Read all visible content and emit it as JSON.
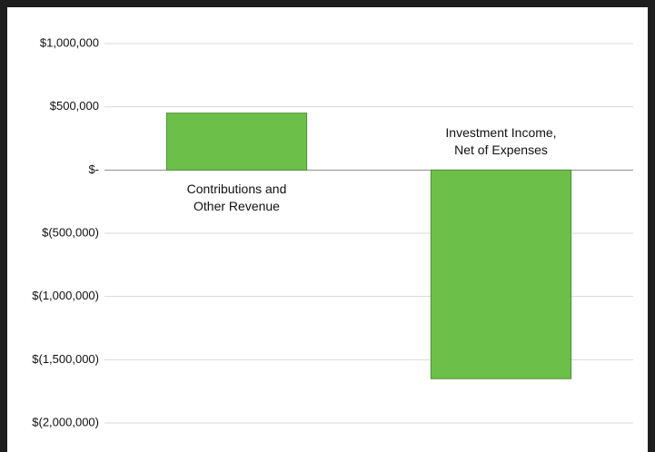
{
  "chart_data": {
    "type": "bar",
    "categories": [
      "Contributions and\nOther Revenue",
      "Investment Income,\nNet of Expenses"
    ],
    "values": [
      450000,
      -1650000
    ],
    "color": "#6cc04a",
    "ylim": [
      -2000000,
      1000000
    ],
    "yticks": [
      {
        "value": 1000000,
        "label": "$1,000,000"
      },
      {
        "value": 500000,
        "label": "$500,000"
      },
      {
        "value": 0,
        "label": "$-"
      },
      {
        "value": -500000,
        "label": "$(500,000)"
      },
      {
        "value": -1000000,
        "label": "$(1,000,000)"
      },
      {
        "value": -1500000,
        "label": "$(1,500,000)"
      },
      {
        "value": -2000000,
        "label": "$(2,000,000)"
      }
    ],
    "grid": true
  }
}
